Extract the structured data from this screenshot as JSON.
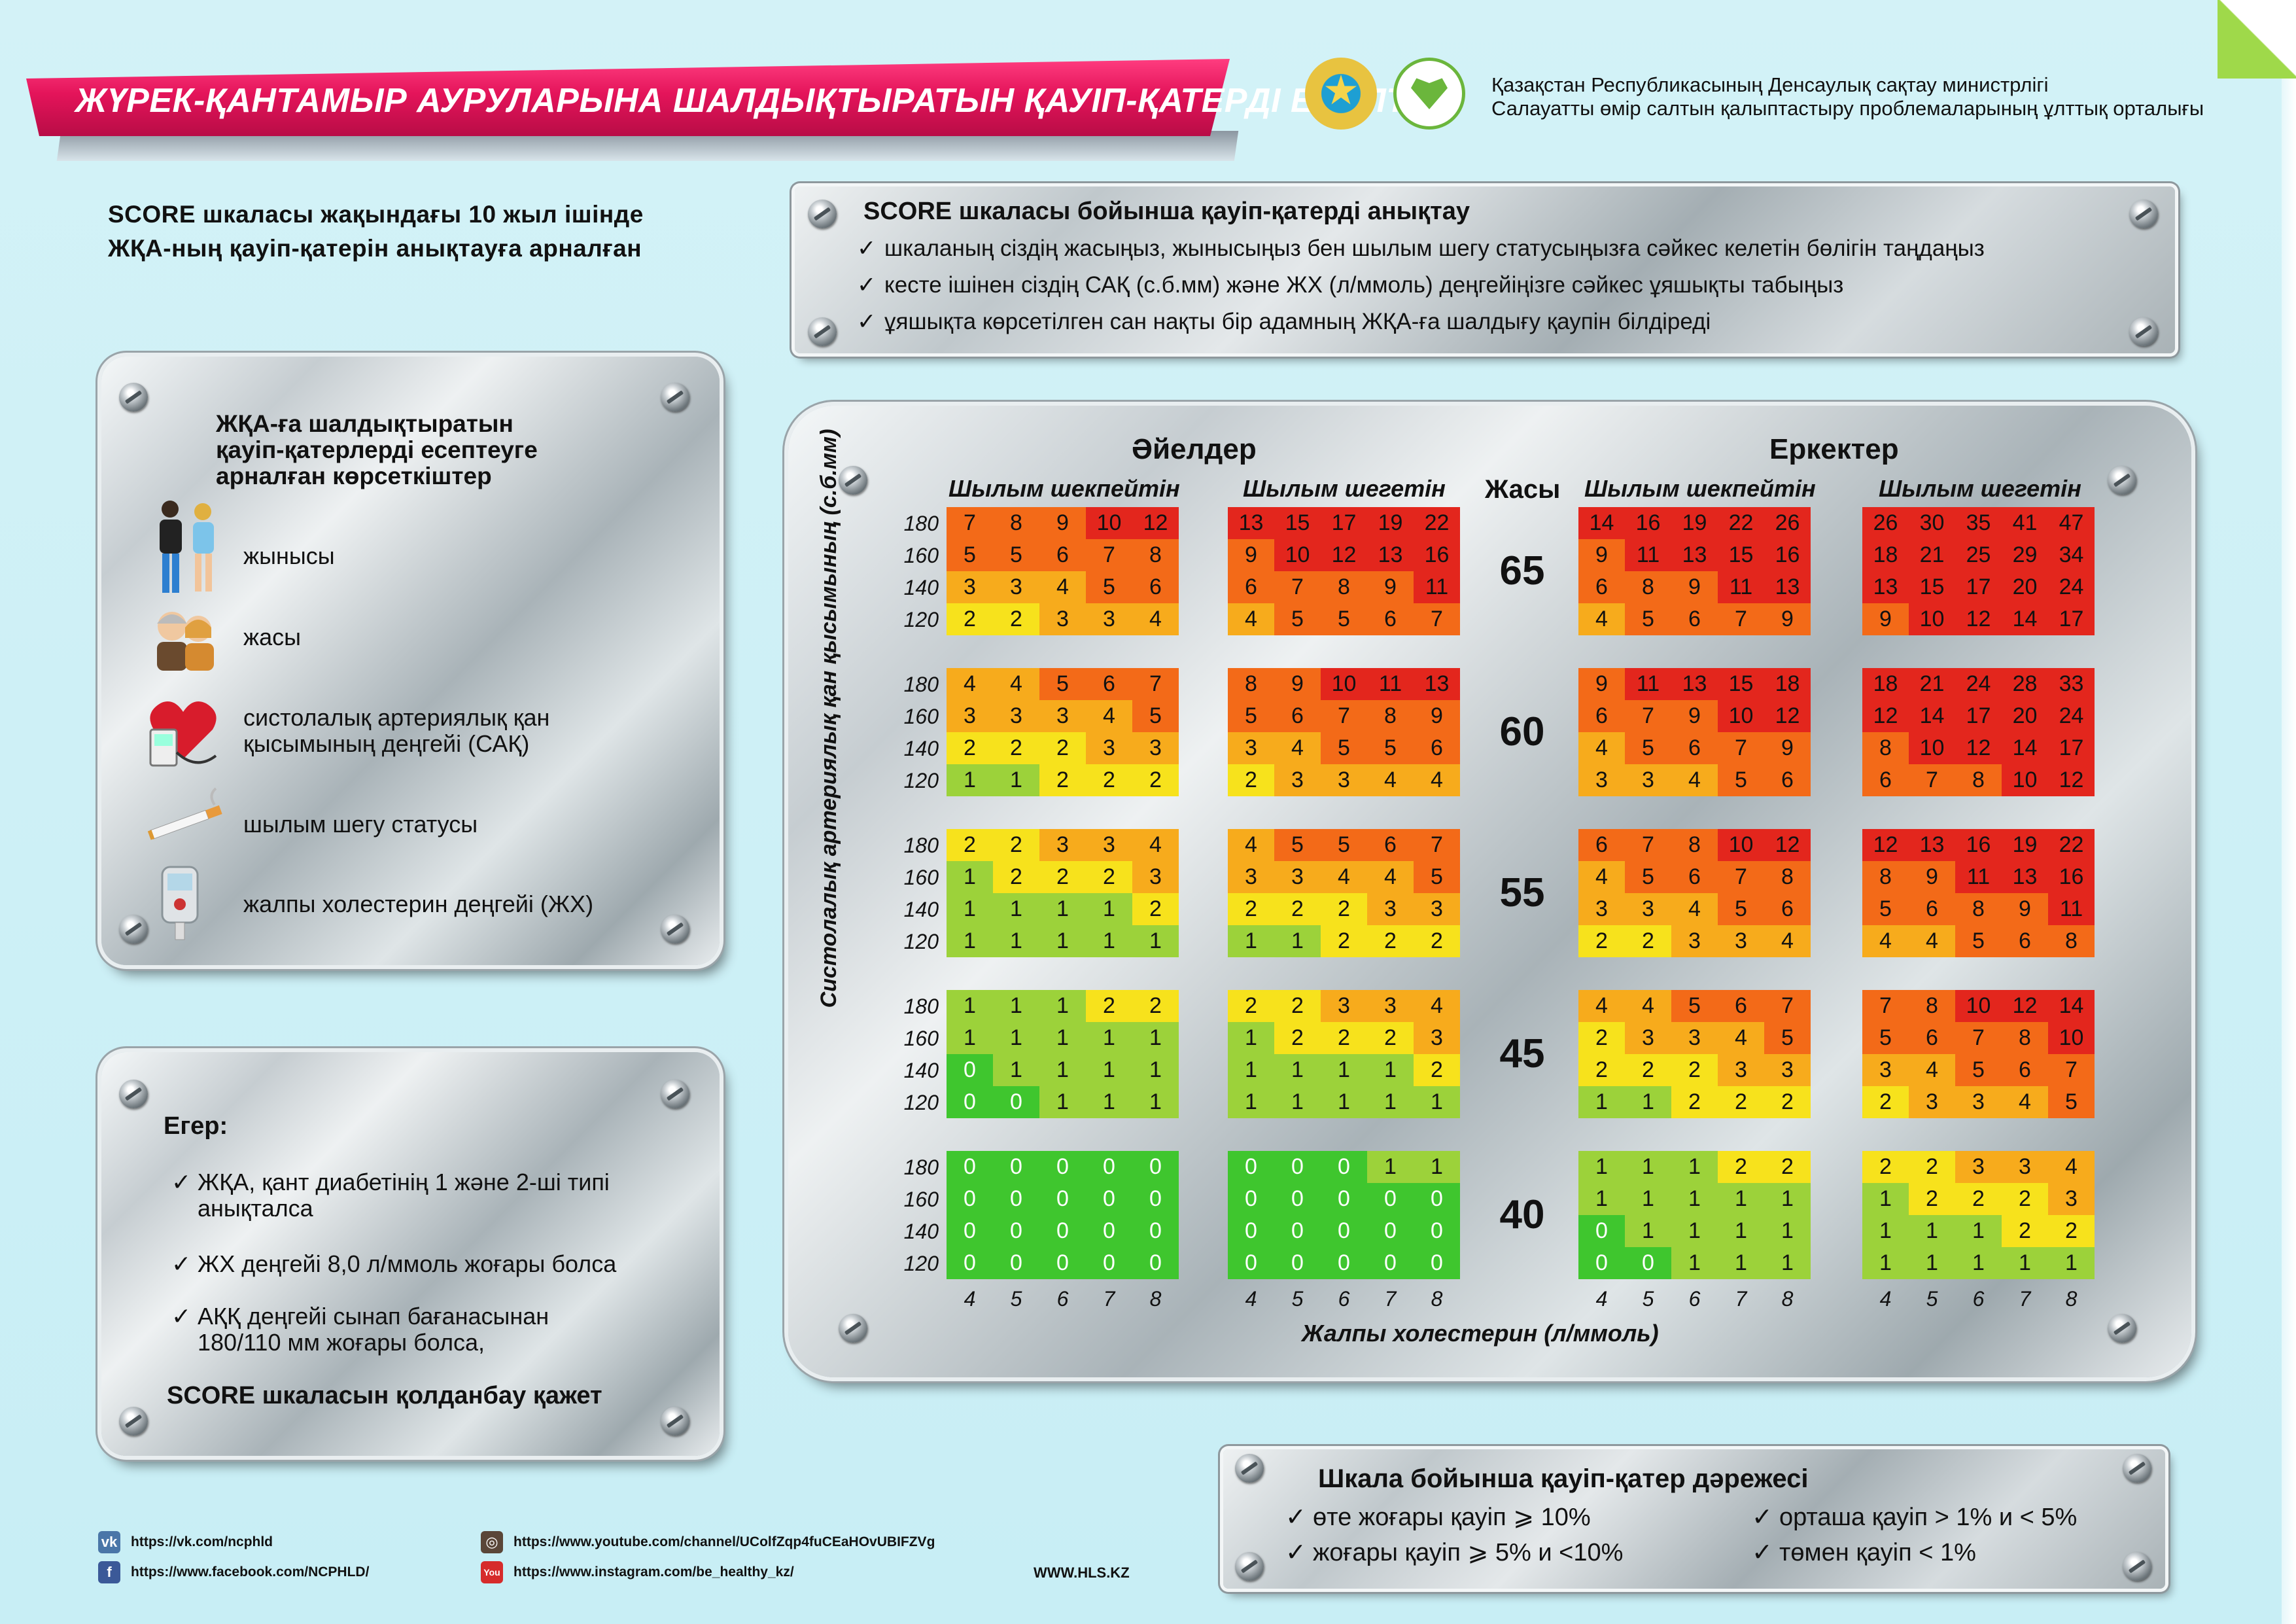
{
  "title": "ЖҮРЕК-ҚАНТАМЫР АУРУЛАРЫНА ШАЛДЫҚТЫРАТЫН ҚАУІП-ҚАТЕРДІ ЕСЕПТЕУ",
  "organization": {
    "line1": "Қазақстан Республикасының Денсаулық сақтау министрлігі",
    "line2": "Салауатты өмір салтын қалыптастыру проблемаларының ұлттық орталығы"
  },
  "intro": {
    "line1": "SCORE шкаласы жақындағы 10 жыл ішінде",
    "line2": "ЖҚА-ның қауіп-қатерін анықтауға арналған"
  },
  "steps": {
    "title": "SCORE шкаласы бойынша қауіп-қатерді анықтау",
    "items": [
      "шкаланың сіздің жасыңыз, жынысыңыз бен шылым шегу статусыңызға сәйкес келетін бөлігін таңдаңыз",
      "кесте ішінен сіздің САҚ (с.б.мм) және ЖХ (л/ммоль) деңгейіңізге сәйкес ұяшықты табыңыз",
      "ұяшықта көрсетілген сан нақты бір адамның ЖҚА-ға шалдығу қаупін білдіреді"
    ]
  },
  "factors": {
    "title_line1": "ЖҚА-ға шалдықтыратын",
    "title_line2": "қауіп-қатерлерді есептеуге",
    "title_line3": "арналған көрсеткіштер",
    "items": [
      {
        "icon": "gender-people-icon",
        "label1": "жынысы",
        "label2": ""
      },
      {
        "icon": "elderly-couple-icon",
        "label1": "жасы",
        "label2": ""
      },
      {
        "icon": "blood-pressure-monitor-icon",
        "label1": "систолалық артериялық қан",
        "label2": "қысымының деңгейі (САҚ)"
      },
      {
        "icon": "cigarette-icon",
        "label1": "шылым шегу статусы",
        "label2": ""
      },
      {
        "icon": "glucometer-icon",
        "label1": "жалпы холестерин деңгейі (ЖХ)",
        "label2": ""
      }
    ]
  },
  "exceptions": {
    "title": "Егер:",
    "items": [
      {
        "line1": "ЖҚА, қант диабетінің 1 және 2-ші типі",
        "line2": "анықталса"
      },
      {
        "line1": "ЖХ деңгейі 8,0 л/ммоль жоғары болса",
        "line2": ""
      },
      {
        "line1": "АҚҚ деңгейі сынап бағанасынан",
        "line2": "180/110 мм жоғары болса,"
      }
    ],
    "footer": "SCORE шкаласын қолданбау қажет"
  },
  "chart_data": {
    "type": "heatmap",
    "title": "SCORE",
    "groups": [
      "Әйелдер",
      "Еркектер"
    ],
    "subgroups": [
      "Шылым шекпейтін",
      "Шылым шегетін"
    ],
    "age_header": "Жасы",
    "ages": [
      "65",
      "60",
      "55",
      "45",
      "40"
    ],
    "sbp_ticks": [
      "180",
      "160",
      "140",
      "120"
    ],
    "chol_ticks": [
      "4",
      "5",
      "6",
      "7",
      "8"
    ],
    "ylabel": "Систолалық артериялық қан қысымының (с.б.мм)",
    "xlabel": "Жалпы холестерин (л/ммоль)",
    "blocks": {
      "women_nonsmoker": [
        [
          [
            7,
            8,
            9,
            10,
            12
          ],
          [
            5,
            5,
            6,
            7,
            8
          ],
          [
            3,
            3,
            4,
            5,
            6
          ],
          [
            2,
            2,
            3,
            3,
            4
          ]
        ],
        [
          [
            4,
            4,
            5,
            6,
            7
          ],
          [
            3,
            3,
            3,
            4,
            5
          ],
          [
            2,
            2,
            2,
            3,
            3
          ],
          [
            1,
            1,
            2,
            2,
            2
          ]
        ],
        [
          [
            2,
            2,
            3,
            3,
            4
          ],
          [
            1,
            2,
            2,
            2,
            3
          ],
          [
            1,
            1,
            1,
            1,
            2
          ],
          [
            1,
            1,
            1,
            1,
            1
          ]
        ],
        [
          [
            1,
            1,
            1,
            2,
            2
          ],
          [
            1,
            1,
            1,
            1,
            1
          ],
          [
            0,
            1,
            1,
            1,
            1
          ],
          [
            0,
            0,
            1,
            1,
            1
          ]
        ],
        [
          [
            0,
            0,
            0,
            0,
            0
          ],
          [
            0,
            0,
            0,
            0,
            0
          ],
          [
            0,
            0,
            0,
            0,
            0
          ],
          [
            0,
            0,
            0,
            0,
            0
          ]
        ]
      ],
      "women_smoker": [
        [
          [
            13,
            15,
            17,
            19,
            22
          ],
          [
            9,
            10,
            12,
            13,
            16
          ],
          [
            6,
            7,
            8,
            9,
            11
          ],
          [
            4,
            5,
            5,
            6,
            7
          ]
        ],
        [
          [
            8,
            9,
            10,
            11,
            13
          ],
          [
            5,
            6,
            7,
            8,
            9
          ],
          [
            3,
            4,
            5,
            5,
            6
          ],
          [
            2,
            3,
            3,
            4,
            4
          ]
        ],
        [
          [
            4,
            5,
            5,
            6,
            7
          ],
          [
            3,
            3,
            4,
            4,
            5
          ],
          [
            2,
            2,
            2,
            3,
            3
          ],
          [
            1,
            1,
            2,
            2,
            2
          ]
        ],
        [
          [
            2,
            2,
            3,
            3,
            4
          ],
          [
            1,
            2,
            2,
            2,
            3
          ],
          [
            1,
            1,
            1,
            1,
            2
          ],
          [
            1,
            1,
            1,
            1,
            1
          ]
        ],
        [
          [
            0,
            0,
            0,
            1,
            1
          ],
          [
            0,
            0,
            0,
            0,
            0
          ],
          [
            0,
            0,
            0,
            0,
            0
          ],
          [
            0,
            0,
            0,
            0,
            0
          ]
        ]
      ],
      "men_nonsmoker": [
        [
          [
            14,
            16,
            19,
            22,
            26
          ],
          [
            9,
            11,
            13,
            15,
            16
          ],
          [
            6,
            8,
            9,
            11,
            13
          ],
          [
            4,
            5,
            6,
            7,
            9
          ]
        ],
        [
          [
            9,
            11,
            13,
            15,
            18
          ],
          [
            6,
            7,
            9,
            10,
            12
          ],
          [
            4,
            5,
            6,
            7,
            9
          ],
          [
            3,
            3,
            4,
            5,
            6
          ]
        ],
        [
          [
            6,
            7,
            8,
            10,
            12
          ],
          [
            4,
            5,
            6,
            7,
            8
          ],
          [
            3,
            3,
            4,
            5,
            6
          ],
          [
            2,
            2,
            3,
            3,
            4
          ]
        ],
        [
          [
            4,
            4,
            5,
            6,
            7
          ],
          [
            2,
            3,
            3,
            4,
            5
          ],
          [
            2,
            2,
            2,
            3,
            3
          ],
          [
            1,
            1,
            2,
            2,
            2
          ]
        ],
        [
          [
            1,
            1,
            1,
            2,
            2
          ],
          [
            1,
            1,
            1,
            1,
            1
          ],
          [
            0,
            1,
            1,
            1,
            1
          ],
          [
            0,
            0,
            1,
            1,
            1
          ]
        ]
      ],
      "men_smoker": [
        [
          [
            26,
            30,
            35,
            41,
            47
          ],
          [
            18,
            21,
            25,
            29,
            34
          ],
          [
            13,
            15,
            17,
            20,
            24
          ],
          [
            9,
            10,
            12,
            14,
            17
          ]
        ],
        [
          [
            18,
            21,
            24,
            28,
            33
          ],
          [
            12,
            14,
            17,
            20,
            24
          ],
          [
            8,
            10,
            12,
            14,
            17
          ],
          [
            6,
            7,
            8,
            10,
            12
          ]
        ],
        [
          [
            12,
            13,
            16,
            19,
            22
          ],
          [
            8,
            9,
            11,
            13,
            16
          ],
          [
            5,
            6,
            8,
            9,
            11
          ],
          [
            4,
            4,
            5,
            6,
            8
          ]
        ],
        [
          [
            7,
            8,
            10,
            12,
            14
          ],
          [
            5,
            6,
            7,
            8,
            10
          ],
          [
            3,
            4,
            5,
            6,
            7
          ],
          [
            2,
            3,
            3,
            4,
            5
          ]
        ],
        [
          [
            2,
            2,
            3,
            3,
            4
          ],
          [
            1,
            2,
            2,
            2,
            3
          ],
          [
            1,
            1,
            1,
            2,
            2
          ],
          [
            1,
            1,
            1,
            1,
            1
          ]
        ]
      ]
    },
    "colors": {
      "very_high": "#e3261d",
      "high": "#f36a18",
      "mid_high": "#f7ab1c",
      "moderate": "#f7e21c",
      "low": "#9cd23a",
      "very_low": "#3fc62e"
    }
  },
  "legend": {
    "title": "Шкала бойынша қауіп-қатер дәрежесі",
    "items": [
      "өте жоғары қауіп  ⩾ 10%",
      "жоғары қауіп  ⩾ 5% и <10%",
      "орташа қауіп > 1% и < 5%",
      "төмен қауіп < 1%"
    ]
  },
  "footer": {
    "vk": "https://vk.com/ncphld",
    "facebook": "https://www.facebook.com/NCPHLD/",
    "youtube": "https://www.youtube.com/channel/UColfZqp4fuCEaHOvUBIFZVg",
    "instagram": "https://www.instagram.com/be_healthy_kz/",
    "site": "WWW.HLS.KZ"
  }
}
